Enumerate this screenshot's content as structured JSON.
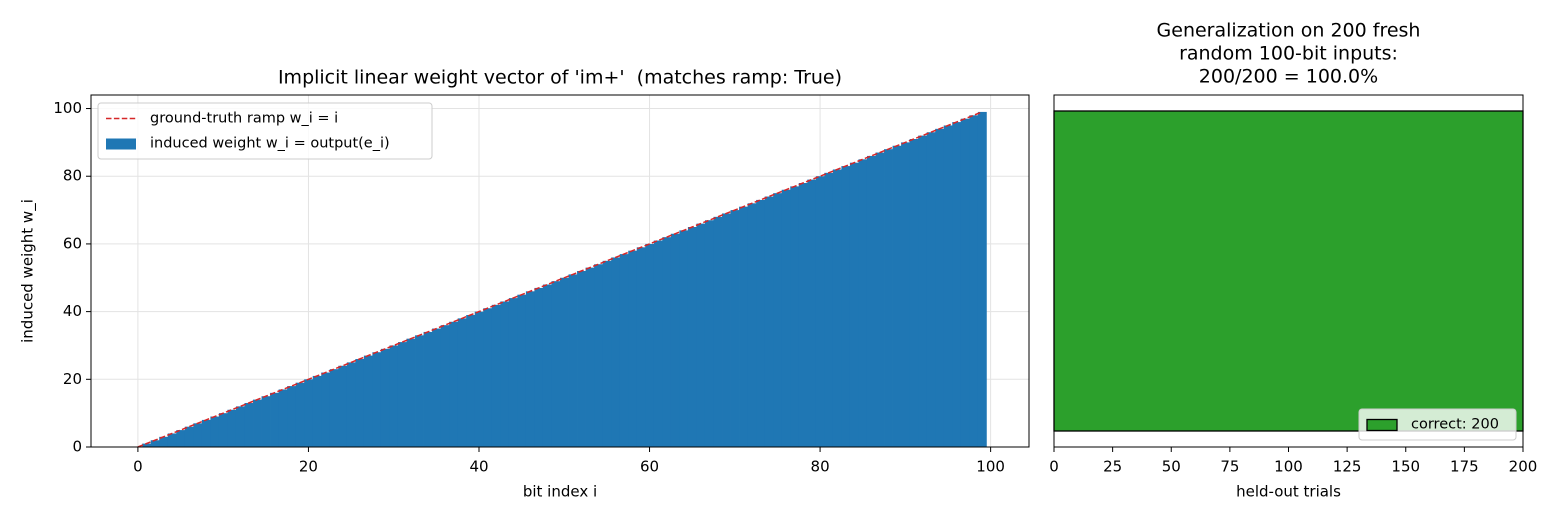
{
  "chart_data": [
    {
      "type": "bar",
      "title": "Implicit linear weight vector of 'im+'  (matches ramp: True)",
      "xlabel": "bit index i",
      "ylabel": "induced weight w_i",
      "x": [
        0,
        1,
        2,
        3,
        4,
        5,
        6,
        7,
        8,
        9,
        10,
        11,
        12,
        13,
        14,
        15,
        16,
        17,
        18,
        19,
        20,
        21,
        22,
        23,
        24,
        25,
        26,
        27,
        28,
        29,
        30,
        31,
        32,
        33,
        34,
        35,
        36,
        37,
        38,
        39,
        40,
        41,
        42,
        43,
        44,
        45,
        46,
        47,
        48,
        49,
        50,
        51,
        52,
        53,
        54,
        55,
        56,
        57,
        58,
        59,
        60,
        61,
        62,
        63,
        64,
        65,
        66,
        67,
        68,
        69,
        70,
        71,
        72,
        73,
        74,
        75,
        76,
        77,
        78,
        79,
        80,
        81,
        82,
        83,
        84,
        85,
        86,
        87,
        88,
        89,
        90,
        91,
        92,
        93,
        94,
        95,
        96,
        97,
        98,
        99
      ],
      "series": [
        {
          "name": "ground-truth ramp w_i = i",
          "type": "line",
          "linestyle": "dashed",
          "color": "#d62728",
          "values": [
            0,
            1,
            2,
            3,
            4,
            5,
            6,
            7,
            8,
            9,
            10,
            11,
            12,
            13,
            14,
            15,
            16,
            17,
            18,
            19,
            20,
            21,
            22,
            23,
            24,
            25,
            26,
            27,
            28,
            29,
            30,
            31,
            32,
            33,
            34,
            35,
            36,
            37,
            38,
            39,
            40,
            41,
            42,
            43,
            44,
            45,
            46,
            47,
            48,
            49,
            50,
            51,
            52,
            53,
            54,
            55,
            56,
            57,
            58,
            59,
            60,
            61,
            62,
            63,
            64,
            65,
            66,
            67,
            68,
            69,
            70,
            71,
            72,
            73,
            74,
            75,
            76,
            77,
            78,
            79,
            80,
            81,
            82,
            83,
            84,
            85,
            86,
            87,
            88,
            89,
            90,
            91,
            92,
            93,
            94,
            95,
            96,
            97,
            98,
            99
          ]
        },
        {
          "name": "induced weight w_i = output(e_i)",
          "type": "bar",
          "color": "#1f77b4",
          "values": [
            0,
            1,
            2,
            3,
            4,
            5,
            6,
            7,
            8,
            9,
            10,
            11,
            12,
            13,
            14,
            15,
            16,
            17,
            18,
            19,
            20,
            21,
            22,
            23,
            24,
            25,
            26,
            27,
            28,
            29,
            30,
            31,
            32,
            33,
            34,
            35,
            36,
            37,
            38,
            39,
            40,
            41,
            42,
            43,
            44,
            45,
            46,
            47,
            48,
            49,
            50,
            51,
            52,
            53,
            54,
            55,
            56,
            57,
            58,
            59,
            60,
            61,
            62,
            63,
            64,
            65,
            66,
            67,
            68,
            69,
            70,
            71,
            72,
            73,
            74,
            75,
            76,
            77,
            78,
            79,
            80,
            81,
            82,
            83,
            84,
            85,
            86,
            87,
            88,
            89,
            90,
            91,
            92,
            93,
            94,
            95,
            96,
            97,
            98,
            99
          ]
        }
      ],
      "xlim": [
        -5.5,
        104.5
      ],
      "xticks": [
        0,
        20,
        40,
        60,
        80,
        100
      ],
      "ylim": [
        0,
        104
      ],
      "yticks": [
        0,
        20,
        40,
        60,
        80,
        100
      ],
      "grid": true,
      "legend": "upper left"
    },
    {
      "type": "barh",
      "title": [
        "Generalization on 200 fresh",
        "random 100-bit inputs:",
        "200/200 = 100.0%"
      ],
      "xlabel": "held-out trials",
      "categories": [
        null
      ],
      "series": [
        {
          "name": "correct: 200",
          "color": "#2ca02c",
          "values": [
            200
          ]
        }
      ],
      "xlim": [
        0,
        200
      ],
      "xticks": [
        0,
        25,
        50,
        75,
        100,
        125,
        150,
        175,
        200
      ],
      "ylim": [
        -0.44,
        0.44
      ],
      "grid": false,
      "legend": "lower right"
    }
  ]
}
